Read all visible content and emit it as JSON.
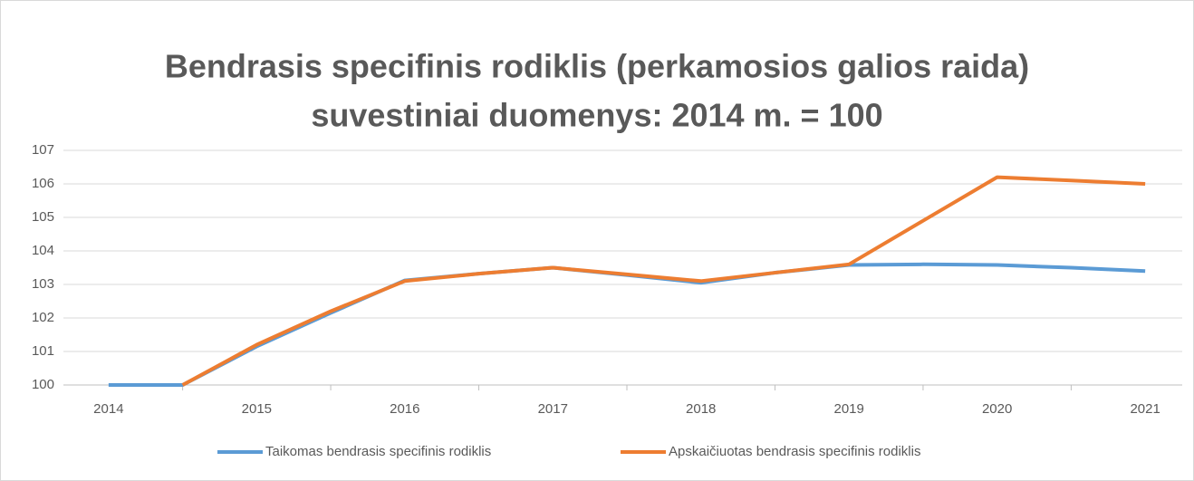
{
  "chart_data": {
    "type": "line",
    "title": [
      "Bendrasis specifinis rodiklis (perkamosios galios raida)",
      "suvestiniai duomenys: 2014 m. = 100"
    ],
    "categories": [
      "2014",
      null,
      "2015",
      null,
      "2016",
      null,
      "2017",
      null,
      "2018",
      null,
      "2019",
      null,
      "2020",
      null,
      "2021"
    ],
    "series": [
      {
        "name": "Taikomas bendrasis specifinis rodiklis",
        "color": "#5b9bd5",
        "values": [
          100,
          100,
          101.15,
          102.15,
          103.12,
          103.32,
          103.5,
          103.28,
          103.05,
          103.35,
          103.58,
          103.6,
          103.58,
          103.5,
          103.4
        ]
      },
      {
        "name": "Apskaičiuotas bendrasis specifinis rodiklis",
        "color": "#ed7d31",
        "values": [
          null,
          100,
          101.2,
          102.2,
          103.1,
          103.32,
          103.5,
          103.3,
          103.1,
          103.35,
          103.6,
          104.9,
          106.2,
          106.1,
          106.0
        ]
      }
    ],
    "ylim": [
      100,
      107
    ],
    "yticks": [
      100,
      101,
      102,
      103,
      104,
      105,
      106,
      107
    ],
    "grid": true,
    "legend": "bottom"
  }
}
